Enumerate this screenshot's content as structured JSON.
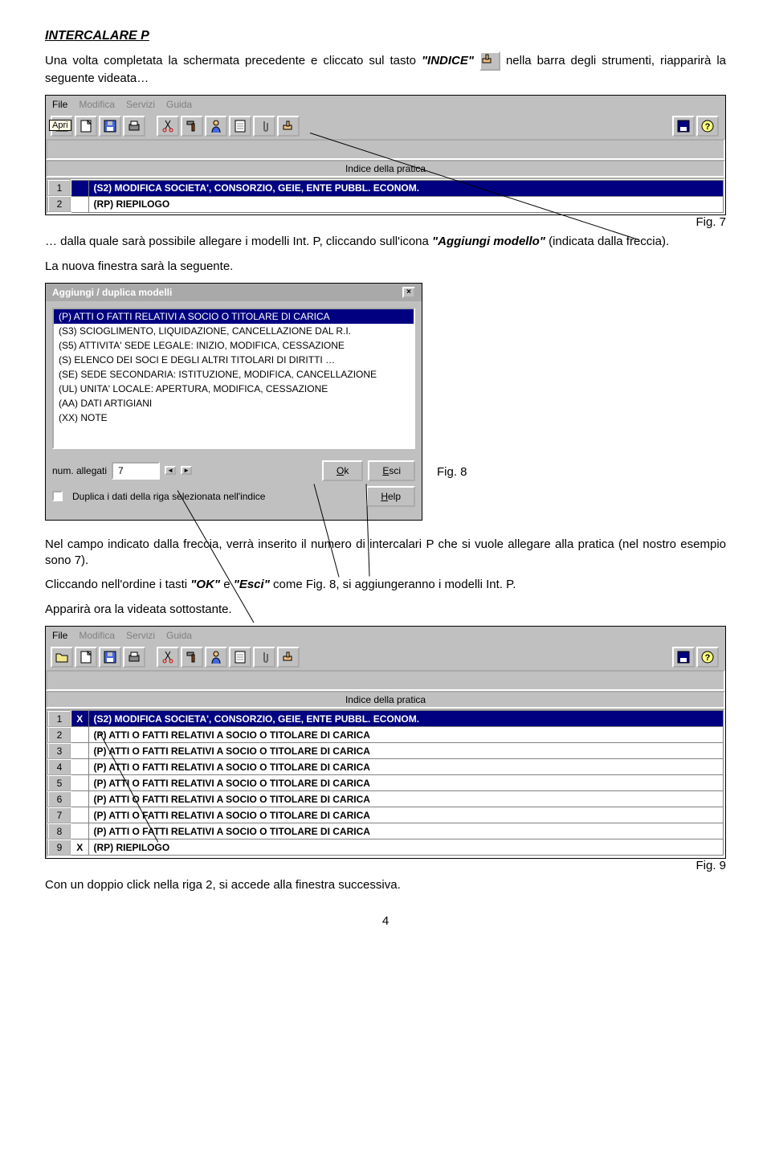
{
  "doc": {
    "heading": "INTERCALARE P",
    "p1_a": "Una volta completata la schermata precedente e cliccato sul tasto ",
    "p1_indice": "\"INDICE\"",
    "p1_b": " nella barra degli strumenti, riapparirà la seguente videata…",
    "fig7": "Fig. 7",
    "p2_a": "… dalla quale sarà possibile allegare i modelli Int. P, cliccando sull'icona ",
    "p2_agg": "\"Aggiungi modello\"",
    "p2_b": " (indicata dalla freccia).",
    "p3": "La nuova finestra sarà la seguente.",
    "fig8": "Fig. 8",
    "p4_a": "Nel campo indicato dalla freccia, verrà inserito il numero di  intercalari P che si vuole allegare alla pratica (nel nostro esempio sono 7).",
    "p5_a": "Cliccando nell'ordine i tasti ",
    "p5_ok": "\"OK\"",
    "p5_b": " e ",
    "p5_esci": "\"Esci\"",
    "p5_c": " come Fig. 8, si aggiungeranno i modelli Int. P.",
    "p6": "Apparirà ora la videata sottostante.",
    "fig9": "Fig. 9",
    "p7": "Con un doppio click nella riga 2, si accede alla finestra successiva.",
    "page": "4"
  },
  "menubar": {
    "file": "File",
    "modifica": "Modifica",
    "servizi": "Servizi",
    "guida": "Guida",
    "apri": "Apri"
  },
  "toolbar": {
    "icons": [
      "folder",
      "new",
      "disk",
      "print",
      "sep",
      "cut",
      "hammer",
      "person",
      "doc",
      "clip",
      "hand",
      "sep",
      "save",
      "help"
    ]
  },
  "fig7grid": {
    "header": "Indice della pratica",
    "rows": [
      {
        "n": "1",
        "mark": "",
        "text": "(S2)  MODIFICA  SOCIETA', CONSORZIO, GEIE, ENTE PUBBL. ECONOM.",
        "sel": true
      },
      {
        "n": "2",
        "mark": "",
        "text": "(RP)  RIEPILOGO",
        "sel": false
      }
    ]
  },
  "dialog": {
    "title": "Aggiungi / duplica modelli",
    "options": [
      "(P) ATTI O FATTI RELATIVI A SOCIO O TITOLARE DI CARICA",
      "(S3) SCIOGLIMENTO, LIQUIDAZIONE, CANCELLAZIONE DAL R.I.",
      "(S5) ATTIVITA' SEDE LEGALE: INIZIO, MODIFICA, CESSAZIONE",
      "(S) ELENCO DEI SOCI E DEGLI ALTRI TITOLARI DI DIRITTI …",
      "(SE) SEDE SECONDARIA: ISTITUZIONE, MODIFICA, CANCELLAZIONE",
      "(UL) UNITA' LOCALE: APERTURA, MODIFICA, CESSAZIONE",
      "(AA) DATI ARTIGIANI",
      "(XX) NOTE"
    ],
    "num_label": "num. allegati",
    "num_value": "7",
    "ok": "Ok",
    "esci": "Esci",
    "help": "Help",
    "duplica": "Duplica i dati della riga selezionata nell'indice"
  },
  "fig9grid": {
    "header": "Indice della pratica",
    "rows": [
      {
        "n": "1",
        "mark": "X",
        "text": "(S2)  MODIFICA  SOCIETA', CONSORZIO, GEIE, ENTE PUBBL. ECONOM.",
        "sel": true
      },
      {
        "n": "2",
        "mark": "",
        "text": "(P)   ATTI O FATTI RELATIVI A SOCIO O TITOLARE DI CARICA",
        "sel": false
      },
      {
        "n": "3",
        "mark": "",
        "text": "(P)   ATTI O FATTI RELATIVI A SOCIO O TITOLARE DI CARICA",
        "sel": false
      },
      {
        "n": "4",
        "mark": "",
        "text": "(P)   ATTI O FATTI RELATIVI A SOCIO O TITOLARE DI CARICA",
        "sel": false
      },
      {
        "n": "5",
        "mark": "",
        "text": "(P)   ATTI O FATTI RELATIVI A SOCIO O TITOLARE DI CARICA",
        "sel": false
      },
      {
        "n": "6",
        "mark": "",
        "text": "(P)   ATTI O FATTI RELATIVI A SOCIO O TITOLARE DI CARICA",
        "sel": false
      },
      {
        "n": "7",
        "mark": "",
        "text": "(P)   ATTI O FATTI RELATIVI A SOCIO O TITOLARE DI CARICA",
        "sel": false
      },
      {
        "n": "8",
        "mark": "",
        "text": "(P)   ATTI O FATTI RELATIVI A SOCIO O TITOLARE DI CARICA",
        "sel": false
      },
      {
        "n": "9",
        "mark": "X",
        "text": "(RP)  RIEPILOGO",
        "sel": false
      }
    ]
  },
  "colors": {
    "accent": "#000080",
    "panel": "#c0c0c0"
  }
}
